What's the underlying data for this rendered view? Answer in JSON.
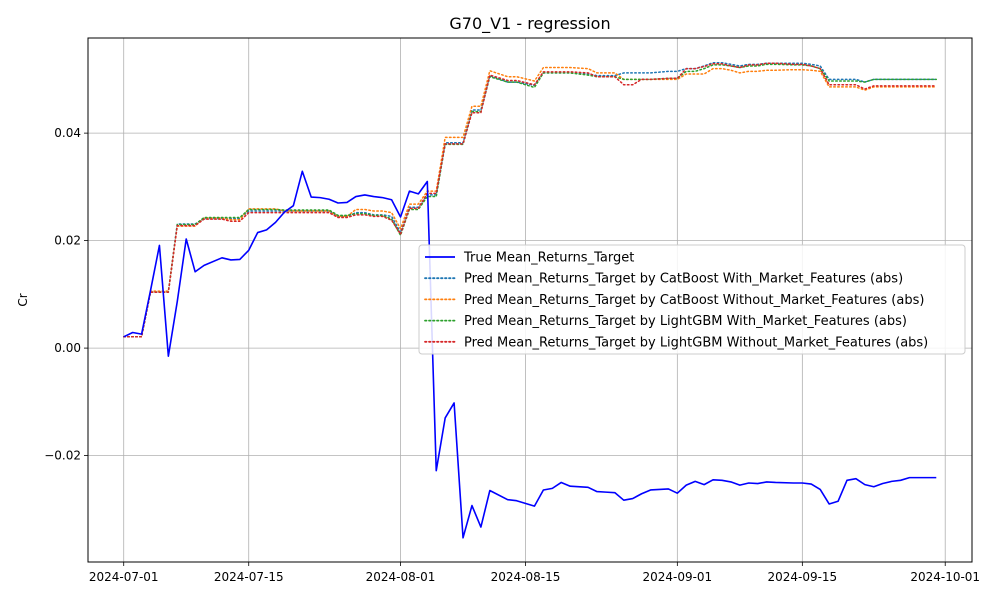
{
  "chart_data": {
    "type": "line",
    "title": "G70_V1 - regression",
    "xlabel": "",
    "ylabel": "Cr",
    "xlim": [
      "2024-06-27",
      "2024-10-04"
    ],
    "ylim": [
      -0.0398,
      0.0577
    ],
    "x_ticks": [
      "2024-07-01",
      "2024-07-15",
      "2024-08-01",
      "2024-08-15",
      "2024-09-01",
      "2024-09-15",
      "2024-10-01"
    ],
    "y_ticks": [
      -0.02,
      0.0,
      0.02,
      0.04
    ],
    "y_tick_labels": [
      "−0.02",
      "0.00",
      "0.02",
      "0.04"
    ],
    "grid": true,
    "legend_position": "center-right",
    "x": [
      "2024-07-01",
      "2024-07-02",
      "2024-07-03",
      "2024-07-04",
      "2024-07-05",
      "2024-07-06",
      "2024-07-07",
      "2024-07-08",
      "2024-07-09",
      "2024-07-10",
      "2024-07-12",
      "2024-07-13",
      "2024-07-14",
      "2024-07-15",
      "2024-07-16",
      "2024-07-17",
      "2024-07-18",
      "2024-07-19",
      "2024-07-20",
      "2024-07-21",
      "2024-07-22",
      "2024-07-23",
      "2024-07-24",
      "2024-07-25",
      "2024-07-26",
      "2024-07-27",
      "2024-07-28",
      "2024-07-29",
      "2024-07-30",
      "2024-07-31",
      "2024-08-01",
      "2024-08-02",
      "2024-08-03",
      "2024-08-04",
      "2024-08-05",
      "2024-08-06",
      "2024-08-07",
      "2024-08-08",
      "2024-08-09",
      "2024-08-10",
      "2024-08-11",
      "2024-08-13",
      "2024-08-14",
      "2024-08-16",
      "2024-08-17",
      "2024-08-18",
      "2024-08-19",
      "2024-08-20",
      "2024-08-22",
      "2024-08-23",
      "2024-08-24",
      "2024-08-25",
      "2024-08-26",
      "2024-08-27",
      "2024-08-28",
      "2024-08-29",
      "2024-08-31",
      "2024-09-01",
      "2024-09-02",
      "2024-09-03",
      "2024-09-04",
      "2024-09-05",
      "2024-09-06",
      "2024-09-07",
      "2024-09-08",
      "2024-09-09",
      "2024-09-10",
      "2024-09-11",
      "2024-09-12",
      "2024-09-14",
      "2024-09-15",
      "2024-09-16",
      "2024-09-17",
      "2024-09-18",
      "2024-09-19",
      "2024-09-20",
      "2024-09-21",
      "2024-09-22",
      "2024-09-23",
      "2024-09-24",
      "2024-09-25",
      "2024-09-26",
      "2024-09-27",
      "2024-09-28",
      "2024-09-30"
    ],
    "series": [
      {
        "name": "True Mean_Returns_Target",
        "color": "#0000ff",
        "style": "solid",
        "values": [
          0.0021,
          0.0029,
          0.0026,
          0.0107,
          0.0191,
          -0.0015,
          0.0087,
          0.0203,
          0.0142,
          0.0154,
          0.0168,
          0.0164,
          0.0165,
          0.0182,
          0.0215,
          0.022,
          0.0234,
          0.0253,
          0.0265,
          0.0329,
          0.0281,
          0.028,
          0.0277,
          0.027,
          0.0271,
          0.0282,
          0.0285,
          0.0282,
          0.028,
          0.0276,
          0.0244,
          0.0292,
          0.0287,
          0.031,
          -0.0228,
          -0.013,
          -0.0102,
          -0.0353,
          -0.0293,
          -0.0333,
          -0.0265,
          -0.0282,
          -0.0284,
          -0.0294,
          -0.0264,
          -0.0261,
          -0.025,
          -0.0257,
          -0.0259,
          -0.0267,
          -0.0268,
          -0.0269,
          -0.0283,
          -0.028,
          -0.0271,
          -0.0264,
          -0.0262,
          -0.027,
          -0.0255,
          -0.0248,
          -0.0254,
          -0.0245,
          -0.0246,
          -0.0249,
          -0.0255,
          -0.0251,
          -0.0252,
          -0.0249,
          -0.025,
          -0.0251,
          -0.0251,
          -0.0253,
          -0.0263,
          -0.029,
          -0.0285,
          -0.0246,
          -0.0243,
          -0.0254,
          -0.0258,
          -0.0252,
          -0.0248,
          -0.0246,
          -0.0241,
          -0.0241,
          -0.0241
        ]
      },
      {
        "name": "Pred Mean_Returns_Target by CatBoost With_Market_Features (abs)",
        "color": "#1f77b4",
        "style": "dotted",
        "values": [
          0.0021,
          0.0021,
          0.0021,
          0.0105,
          0.0105,
          0.0105,
          0.0231,
          0.0231,
          0.0231,
          0.0241,
          0.0241,
          0.0241,
          0.0241,
          0.0255,
          0.0255,
          0.0255,
          0.0255,
          0.0255,
          0.0255,
          0.0255,
          0.0255,
          0.0255,
          0.0255,
          0.0245,
          0.0245,
          0.0252,
          0.0252,
          0.0248,
          0.0248,
          0.0245,
          0.0215,
          0.0262,
          0.0262,
          0.0285,
          0.0285,
          0.0382,
          0.0382,
          0.0382,
          0.0443,
          0.0443,
          0.0507,
          0.0495,
          0.0495,
          0.0489,
          0.0512,
          0.0512,
          0.0512,
          0.0512,
          0.051,
          0.0507,
          0.0507,
          0.0507,
          0.0512,
          0.0512,
          0.0512,
          0.0512,
          0.0515,
          0.0515,
          0.052,
          0.052,
          0.0525,
          0.0531,
          0.0531,
          0.0528,
          0.0525,
          0.0528,
          0.0528,
          0.053,
          0.053,
          0.053,
          0.053,
          0.0528,
          0.0525,
          0.05,
          0.05,
          0.05,
          0.05,
          0.0495,
          0.05,
          0.05,
          0.05,
          0.05,
          0.05,
          0.05,
          0.05
        ]
      },
      {
        "name": "Pred Mean_Returns_Target by CatBoost Without_Market_Features (abs)",
        "color": "#ff7f0e",
        "style": "dotted",
        "values": [
          0.0021,
          0.0021,
          0.0021,
          0.0106,
          0.0106,
          0.0106,
          0.0227,
          0.0227,
          0.0227,
          0.0242,
          0.0242,
          0.0239,
          0.0239,
          0.0259,
          0.0259,
          0.0259,
          0.0259,
          0.0255,
          0.0255,
          0.0255,
          0.0255,
          0.0255,
          0.0255,
          0.0245,
          0.0245,
          0.0258,
          0.0258,
          0.0255,
          0.0255,
          0.0252,
          0.0222,
          0.0268,
          0.0268,
          0.0292,
          0.0292,
          0.0392,
          0.0392,
          0.0392,
          0.045,
          0.045,
          0.0516,
          0.0505,
          0.0505,
          0.0497,
          0.0522,
          0.0522,
          0.0522,
          0.0522,
          0.052,
          0.0512,
          0.0512,
          0.0512,
          0.05,
          0.05,
          0.05,
          0.05,
          0.05,
          0.05,
          0.051,
          0.051,
          0.051,
          0.052,
          0.052,
          0.0517,
          0.0512,
          0.0515,
          0.0515,
          0.0517,
          0.0517,
          0.0518,
          0.0518,
          0.0517,
          0.0515,
          0.0486,
          0.0486,
          0.0486,
          0.0486,
          0.048,
          0.0486,
          0.0486,
          0.0486,
          0.0486,
          0.0486,
          0.0486,
          0.0486
        ]
      },
      {
        "name": "Pred Mean_Returns_Target by LightGBM With_Market_Features (abs)",
        "color": "#2ca02c",
        "style": "dotted",
        "values": [
          0.0021,
          0.0021,
          0.0021,
          0.0104,
          0.0104,
          0.0104,
          0.023,
          0.023,
          0.023,
          0.0243,
          0.0243,
          0.0243,
          0.0243,
          0.0258,
          0.0258,
          0.0258,
          0.0258,
          0.0257,
          0.0257,
          0.0257,
          0.0257,
          0.0257,
          0.0257,
          0.0247,
          0.0247,
          0.025,
          0.025,
          0.0247,
          0.0247,
          0.024,
          0.021,
          0.0258,
          0.0258,
          0.0282,
          0.0282,
          0.0379,
          0.0379,
          0.0379,
          0.044,
          0.044,
          0.0505,
          0.0495,
          0.0495,
          0.0485,
          0.0512,
          0.0512,
          0.0512,
          0.0512,
          0.0508,
          0.0505,
          0.0505,
          0.0505,
          0.05,
          0.05,
          0.05,
          0.05,
          0.0502,
          0.0502,
          0.0515,
          0.0515,
          0.052,
          0.0527,
          0.0527,
          0.0525,
          0.0522,
          0.0525,
          0.0525,
          0.0528,
          0.0528,
          0.0527,
          0.0527,
          0.0525,
          0.052,
          0.0497,
          0.0497,
          0.0497,
          0.0497,
          0.0495,
          0.05,
          0.05,
          0.05,
          0.05,
          0.05,
          0.05,
          0.05
        ]
      },
      {
        "name": "Pred Mean_Returns_Target by LightGBM Without_Market_Features (abs)",
        "color": "#d62728",
        "style": "dotted",
        "values": [
          0.0021,
          0.0021,
          0.0021,
          0.0104,
          0.0104,
          0.0104,
          0.0228,
          0.0228,
          0.0228,
          0.024,
          0.024,
          0.0236,
          0.0236,
          0.0252,
          0.0252,
          0.0252,
          0.0252,
          0.0252,
          0.0252,
          0.0252,
          0.0252,
          0.0252,
          0.0252,
          0.0243,
          0.0243,
          0.0248,
          0.0248,
          0.0245,
          0.0245,
          0.0238,
          0.0212,
          0.026,
          0.026,
          0.0288,
          0.0288,
          0.038,
          0.038,
          0.038,
          0.0438,
          0.0438,
          0.0508,
          0.0498,
          0.0498,
          0.049,
          0.0514,
          0.0514,
          0.0514,
          0.0514,
          0.0512,
          0.0505,
          0.0505,
          0.0505,
          0.049,
          0.049,
          0.05,
          0.05,
          0.0502,
          0.0502,
          0.052,
          0.052,
          0.0524,
          0.0529,
          0.0529,
          0.0525,
          0.0522,
          0.0527,
          0.0527,
          0.053,
          0.053,
          0.0528,
          0.0528,
          0.0525,
          0.052,
          0.049,
          0.049,
          0.049,
          0.049,
          0.0482,
          0.0488,
          0.0488,
          0.0488,
          0.0488,
          0.0488,
          0.0488,
          0.0488
        ]
      }
    ]
  }
}
